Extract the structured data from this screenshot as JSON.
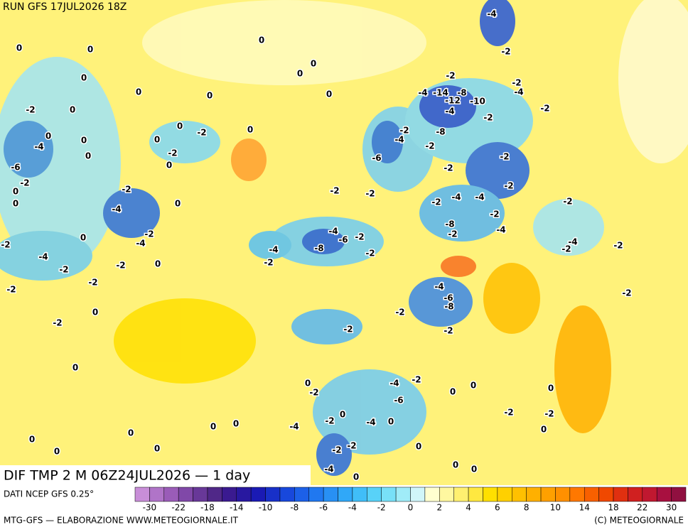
{
  "header": {
    "title": "RUN GFS 17JUL2026 18Z"
  },
  "map": {
    "title": "DIF TMP 2 M 06Z24JUL2026 — 1 day",
    "labels": [
      0,
      0,
      0,
      0,
      0,
      0,
      -2,
      0,
      0,
      -4,
      0,
      -6,
      -2,
      0,
      0,
      -2,
      -2,
      0,
      0,
      0,
      -2,
      0,
      0,
      0,
      0,
      0,
      -4,
      0,
      -2,
      -4,
      0,
      -2,
      -4,
      -2,
      -2,
      0,
      -2,
      -2,
      0,
      -2,
      0,
      -2,
      -2,
      -6,
      -4,
      -2,
      -4,
      -8,
      -6,
      -2,
      -2,
      -4,
      -2,
      -2,
      -2,
      -2,
      -4,
      -4,
      -8,
      -2,
      -2,
      -4,
      -2,
      -2,
      -2,
      -10,
      -4,
      -8,
      -2,
      -4,
      -8,
      -2,
      -4,
      -2,
      -2,
      -4,
      -2,
      -4,
      -2,
      -2,
      -2,
      -4,
      -6,
      -8,
      -2,
      -2,
      -2,
      0,
      -2,
      -4,
      -2,
      -6,
      0,
      0,
      0,
      -2,
      -2,
      0,
      -4,
      0,
      0,
      -2,
      -4,
      0,
      0,
      0,
      0,
      0,
      0,
      -2,
      -2,
      0,
      -4,
      0,
      0,
      0,
      -14,
      -12
    ]
  },
  "colorbar": {
    "colors": [
      "#c88ed8",
      "#b074c8",
      "#9a5cb8",
      "#8048a8",
      "#683898",
      "#502888",
      "#3a1a90",
      "#2818a0",
      "#1a1ab4",
      "#1830c8",
      "#1848dc",
      "#1c60e8",
      "#2078f0",
      "#2890f4",
      "#30a8f8",
      "#40bef8",
      "#58d2f8",
      "#78e0f8",
      "#a0ecf8",
      "#d0f6fa",
      "#ffffd0",
      "#fff8a0",
      "#fff070",
      "#ffe840",
      "#ffe000",
      "#ffd000",
      "#ffc000",
      "#ffb000",
      "#ffa000",
      "#ff9000",
      "#ff7800",
      "#f86000",
      "#f04800",
      "#e03010",
      "#d02020",
      "#c01830",
      "#a81040",
      "#901040"
    ],
    "ticks": [
      -30,
      -22,
      -18,
      -14,
      -10,
      -8,
      -6,
      -4,
      -2,
      0,
      2,
      4,
      6,
      8,
      10,
      14,
      18,
      22,
      30
    ]
  },
  "footer": {
    "source": "DATI NCEP GFS 0.25°",
    "credit": "MTG-GFS — ELABORAZIONE WWW.METEOGIORNALE.IT",
    "copyright": "(C) METEOGIORNALE"
  }
}
